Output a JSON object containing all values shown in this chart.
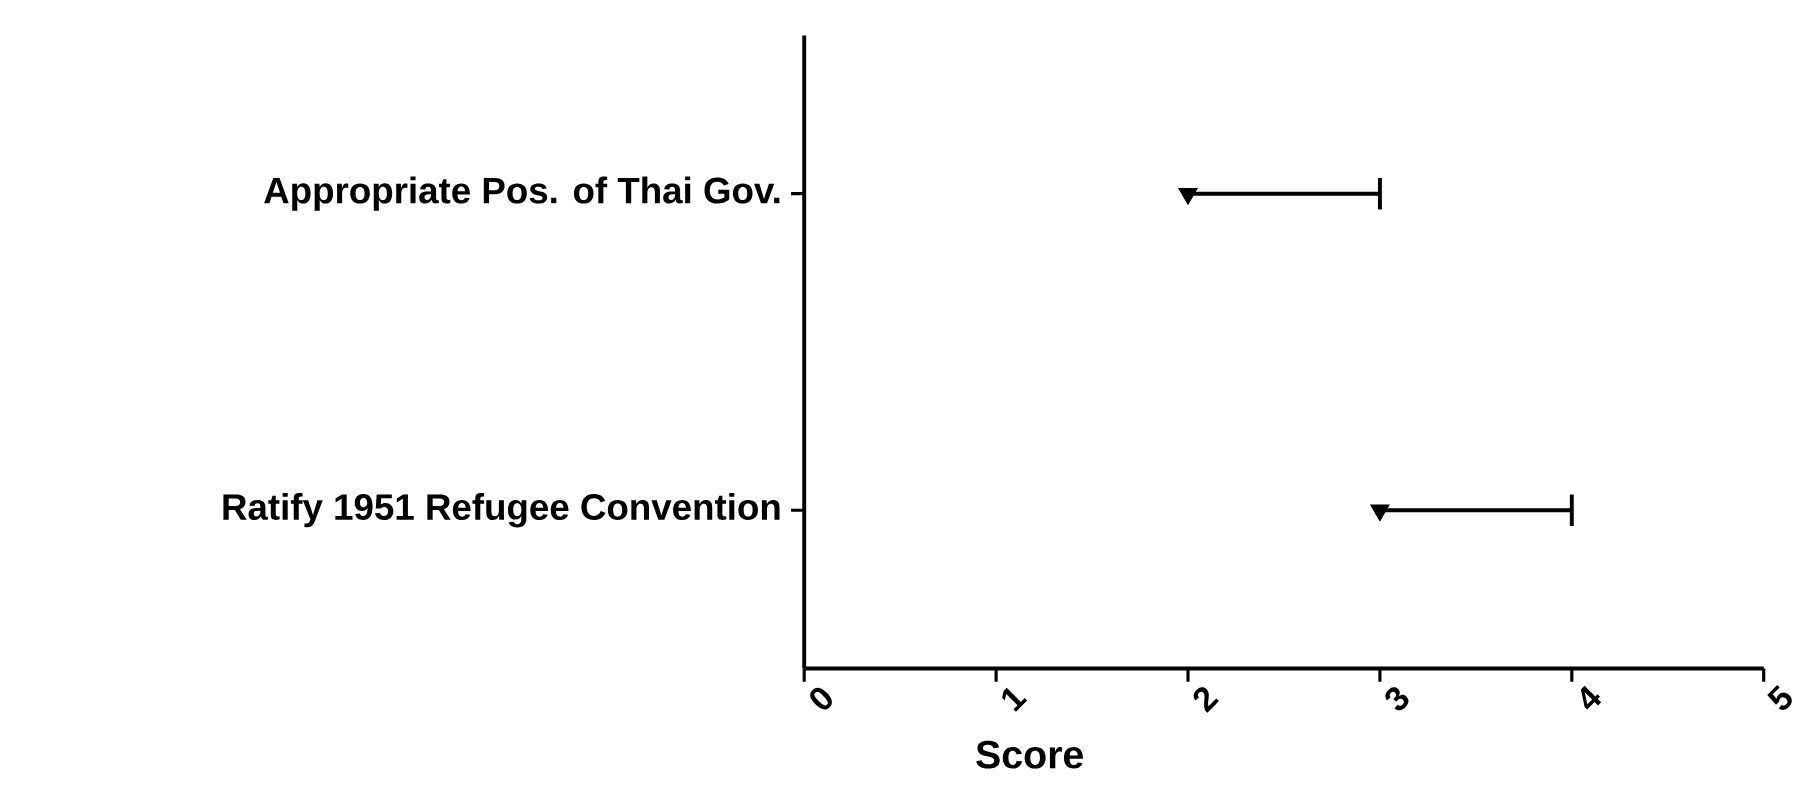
{
  "chart_data": {
    "type": "scatter",
    "orientation": "horizontal",
    "xlabel": "Score",
    "categories": [
      "Appropriate Pos. of Thai Gov.",
      "Ratify 1951 Refugee Convention"
    ],
    "values": [
      2,
      3
    ],
    "errors": [
      [
        2,
        3
      ],
      [
        3,
        4
      ]
    ],
    "color": "#000000",
    "marker": "triangle",
    "grid": false,
    "xlim": [
      0,
      5
    ],
    "xticks": [
      0,
      1,
      2,
      3,
      4,
      5
    ]
  }
}
